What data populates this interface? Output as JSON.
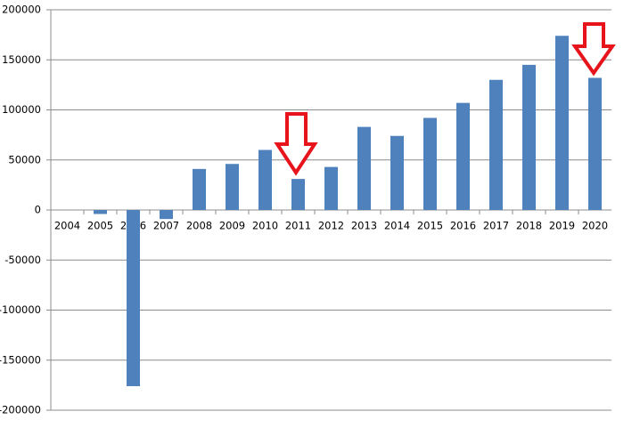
{
  "chart_data": {
    "type": "bar",
    "categories": [
      "2004",
      "2005",
      "2006",
      "2007",
      "2008",
      "2009",
      "2010",
      "2011",
      "2012",
      "2013",
      "2014",
      "2015",
      "2016",
      "2017",
      "2018",
      "2019",
      "2020"
    ],
    "values": [
      null,
      -4000,
      -176000,
      -9000,
      41000,
      46000,
      60000,
      31000,
      43000,
      83000,
      74000,
      92000,
      107000,
      130000,
      145000,
      174000,
      132000
    ],
    "color": "#4f81bd",
    "ylim": [
      -200000,
      200000
    ],
    "yticks": [
      -200000,
      -150000,
      -100000,
      -50000,
      0,
      50000,
      100000,
      150000,
      200000
    ],
    "grid": true
  }
}
